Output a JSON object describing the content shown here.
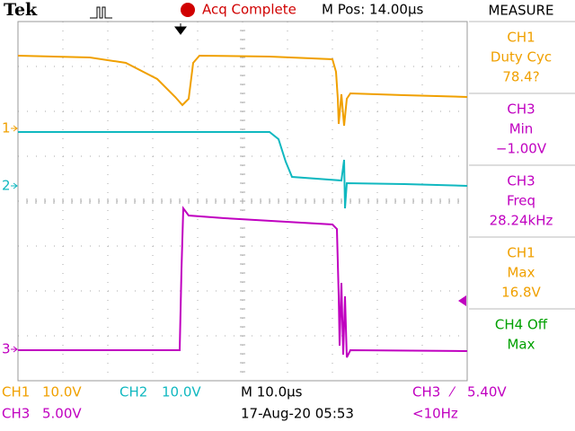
{
  "header": {
    "logo": "Tek",
    "status": "Acq Complete",
    "position": "M Pos: 14.00µs"
  },
  "markers": [
    "1",
    "2",
    "3"
  ],
  "measure": {
    "title": "MEASURE",
    "items": [
      {
        "source": "CH1",
        "label": "Duty Cyc",
        "value": "78.4?"
      },
      {
        "source": "CH3",
        "label": "Min",
        "value": "−1.00V"
      },
      {
        "source": "CH3",
        "label": "Freq",
        "value": "28.24kHz"
      },
      {
        "source": "CH1",
        "label": "Max",
        "value": "16.8V"
      },
      {
        "source": "CH4 Off",
        "label": "Max"
      }
    ]
  },
  "footer": {
    "ch1": {
      "name": "CH1",
      "scale": "10.0V"
    },
    "ch2": {
      "name": "CH2",
      "scale": "10.0V"
    },
    "ch3": {
      "name": "CH3",
      "scale": "5.00V"
    },
    "timebase": "M 10.0µs",
    "datetime": "17-Aug-20 05:53",
    "trigger": {
      "source": "CH3",
      "slope": "⁄",
      "level": "5.40V"
    },
    "frequency": "<10Hz"
  }
}
